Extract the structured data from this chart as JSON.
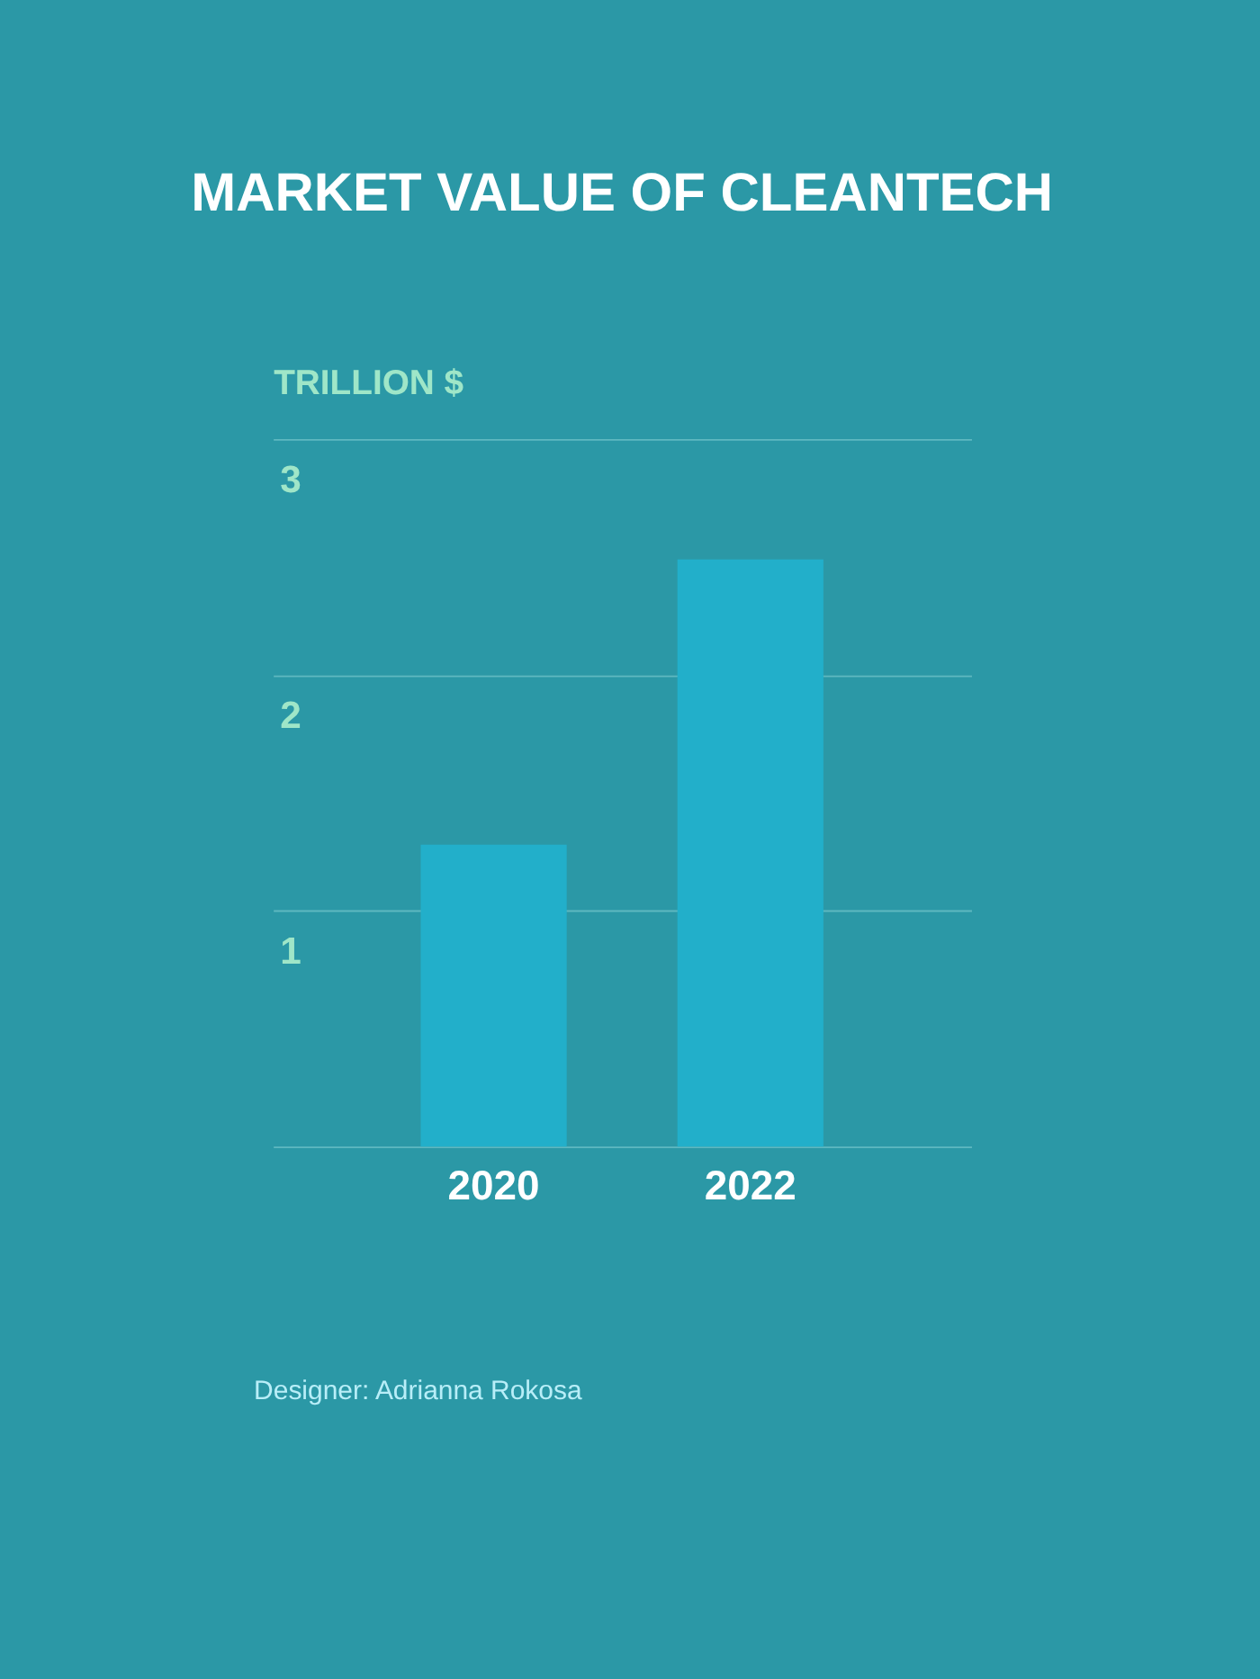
{
  "chart_data": {
    "type": "bar",
    "title": "MARKET VALUE OF CLEANTECH",
    "ylabel": "TRILLION $",
    "categories": [
      "2020",
      "2022"
    ],
    "series": [
      {
        "color": "#22afca",
        "values": [
          1.28,
          2.49
        ]
      }
    ],
    "ylim": [
      0,
      3
    ],
    "yticks": [
      {
        "value": 0,
        "label": null
      },
      1,
      2,
      3
    ],
    "grid": "y",
    "annotations": [
      "Designer: Adrianna Rokosa"
    ]
  }
}
